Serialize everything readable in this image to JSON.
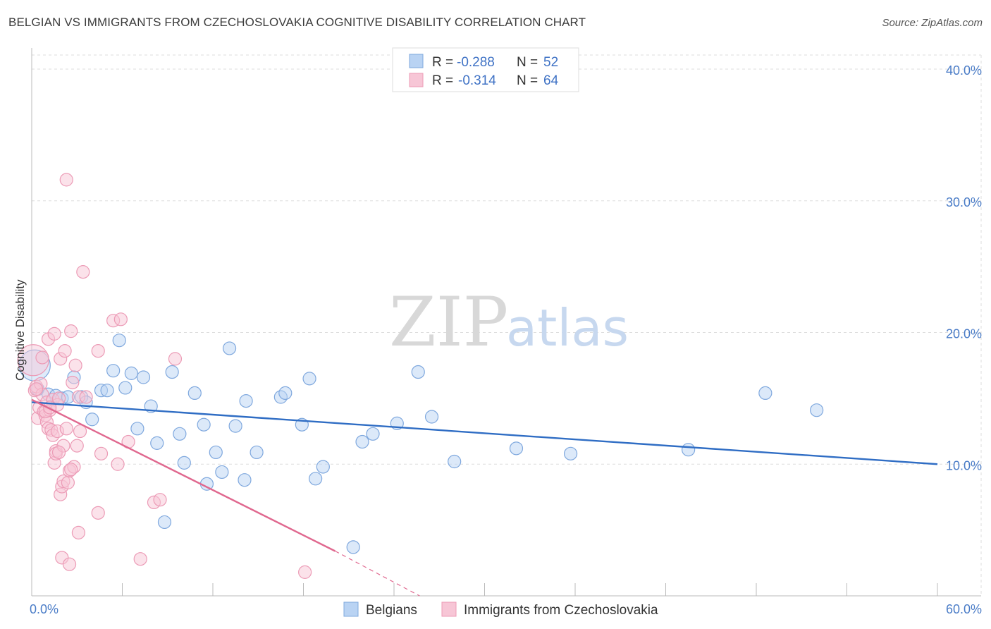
{
  "title": "BELGIAN VS IMMIGRANTS FROM CZECHOSLOVAKIA COGNITIVE DISABILITY CORRELATION CHART",
  "source": "Source: ZipAtlas.com",
  "watermark": {
    "zip": "ZIP",
    "atlas": "atlas"
  },
  "legend_top": {
    "r_label": "R =",
    "n_label": "N =",
    "items": [
      {
        "r": "-0.288",
        "n": "52"
      },
      {
        "r": "-0.314",
        "n": "64"
      }
    ]
  },
  "colors": {
    "belgians_fill": "#b9d3f3",
    "belgians_stroke": "#7fa8de",
    "belgians_line": "#2f6dc4",
    "czech_fill": "#f7c6d6",
    "czech_stroke": "#ec9bb6",
    "czech_line": "#e0688f",
    "tick_label": "#4a7cc7",
    "grid": "#dddddd"
  },
  "chart_data": {
    "type": "scatter",
    "title": "BELGIAN VS IMMIGRANTS FROM CZECHOSLOVAKIA COGNITIVE DISABILITY CORRELATION CHART",
    "xlabel": "",
    "ylabel": "Cognitive Disability",
    "xlim": [
      0,
      60
    ],
    "ylim": [
      0,
      41.5
    ],
    "x_tick_labels": [
      "0.0%",
      "60.0%"
    ],
    "y_ticks": [
      10,
      20,
      30,
      40
    ],
    "y_tick_labels": [
      "10.0%",
      "20.0%",
      "30.0%",
      "40.0%"
    ],
    "grid": true,
    "legend_position": "top-center",
    "series": [
      {
        "name": "Belgians",
        "r": -0.288,
        "n": 52,
        "trend": {
          "x": [
            0,
            60
          ],
          "y": [
            14.7,
            10.0
          ]
        },
        "points": [
          {
            "x": 0.2,
            "y": 17.5,
            "big": true
          },
          {
            "x": 0.4,
            "y": 15.7
          },
          {
            "x": 1.1,
            "y": 15.3
          },
          {
            "x": 1.6,
            "y": 15.2
          },
          {
            "x": 2.0,
            "y": 15.0
          },
          {
            "x": 2.4,
            "y": 15.1
          },
          {
            "x": 2.8,
            "y": 16.6
          },
          {
            "x": 3.3,
            "y": 15.1
          },
          {
            "x": 3.6,
            "y": 14.7
          },
          {
            "x": 4.0,
            "y": 13.4
          },
          {
            "x": 4.6,
            "y": 15.6
          },
          {
            "x": 5.0,
            "y": 15.6
          },
          {
            "x": 5.4,
            "y": 17.1
          },
          {
            "x": 5.8,
            "y": 19.4
          },
          {
            "x": 6.2,
            "y": 15.8
          },
          {
            "x": 6.6,
            "y": 16.9
          },
          {
            "x": 7.0,
            "y": 12.7
          },
          {
            "x": 7.4,
            "y": 16.6
          },
          {
            "x": 7.9,
            "y": 14.4
          },
          {
            "x": 8.3,
            "y": 11.6
          },
          {
            "x": 8.8,
            "y": 5.6
          },
          {
            "x": 9.3,
            "y": 17.0
          },
          {
            "x": 9.8,
            "y": 12.3
          },
          {
            "x": 10.1,
            "y": 10.1
          },
          {
            "x": 10.8,
            "y": 15.4
          },
          {
            "x": 11.4,
            "y": 13.0
          },
          {
            "x": 11.6,
            "y": 8.5
          },
          {
            "x": 12.2,
            "y": 10.9
          },
          {
            "x": 12.6,
            "y": 9.4
          },
          {
            "x": 13.1,
            "y": 18.8
          },
          {
            "x": 13.5,
            "y": 12.9
          },
          {
            "x": 14.1,
            "y": 8.8
          },
          {
            "x": 14.2,
            "y": 14.8
          },
          {
            "x": 14.9,
            "y": 10.9
          },
          {
            "x": 16.5,
            "y": 15.1
          },
          {
            "x": 16.8,
            "y": 15.4
          },
          {
            "x": 17.9,
            "y": 13.0
          },
          {
            "x": 18.4,
            "y": 16.5
          },
          {
            "x": 18.8,
            "y": 8.9
          },
          {
            "x": 19.3,
            "y": 9.8
          },
          {
            "x": 21.3,
            "y": 3.7
          },
          {
            "x": 21.9,
            "y": 11.7
          },
          {
            "x": 22.6,
            "y": 12.3
          },
          {
            "x": 24.2,
            "y": 13.1
          },
          {
            "x": 25.6,
            "y": 17.0
          },
          {
            "x": 26.5,
            "y": 13.6
          },
          {
            "x": 28.0,
            "y": 10.2
          },
          {
            "x": 32.1,
            "y": 11.2
          },
          {
            "x": 35.7,
            "y": 10.8
          },
          {
            "x": 43.5,
            "y": 11.1
          },
          {
            "x": 48.6,
            "y": 15.4
          },
          {
            "x": 52.0,
            "y": 14.1
          }
        ]
      },
      {
        "name": "Immigrants from Czechoslovakia",
        "r": -0.314,
        "n": 64,
        "trend": {
          "x": [
            0,
            20.1
          ],
          "y": [
            14.9,
            3.4
          ]
        },
        "trend_dashed": {
          "x": [
            20.1,
            25.7
          ],
          "y": [
            3.4,
            0
          ]
        },
        "points": [
          {
            "x": 0.1,
            "y": 17.9,
            "big": true
          },
          {
            "x": 0.2,
            "y": 15.6
          },
          {
            "x": 0.3,
            "y": 15.9
          },
          {
            "x": 0.4,
            "y": 13.5
          },
          {
            "x": 0.5,
            "y": 14.3
          },
          {
            "x": 0.6,
            "y": 16.1
          },
          {
            "x": 0.7,
            "y": 15.3
          },
          {
            "x": 0.7,
            "y": 18.1
          },
          {
            "x": 0.8,
            "y": 14.0
          },
          {
            "x": 0.9,
            "y": 13.7
          },
          {
            "x": 1.0,
            "y": 14.7
          },
          {
            "x": 1.0,
            "y": 13.2
          },
          {
            "x": 1.1,
            "y": 19.5
          },
          {
            "x": 1.1,
            "y": 12.7
          },
          {
            "x": 1.2,
            "y": 14.1
          },
          {
            "x": 1.3,
            "y": 12.6
          },
          {
            "x": 1.4,
            "y": 14.9
          },
          {
            "x": 1.4,
            "y": 12.2
          },
          {
            "x": 1.5,
            "y": 10.1
          },
          {
            "x": 1.5,
            "y": 19.9
          },
          {
            "x": 1.6,
            "y": 11.0
          },
          {
            "x": 1.6,
            "y": 10.8
          },
          {
            "x": 1.7,
            "y": 14.5
          },
          {
            "x": 1.7,
            "y": 12.5
          },
          {
            "x": 1.8,
            "y": 15.0
          },
          {
            "x": 1.9,
            "y": 18.0
          },
          {
            "x": 1.9,
            "y": 7.7
          },
          {
            "x": 2.0,
            "y": 8.3
          },
          {
            "x": 2.0,
            "y": 2.9
          },
          {
            "x": 2.1,
            "y": 11.4
          },
          {
            "x": 2.1,
            "y": 8.7
          },
          {
            "x": 2.2,
            "y": 18.6
          },
          {
            "x": 2.3,
            "y": 12.7
          },
          {
            "x": 2.3,
            "y": 31.6
          },
          {
            "x": 2.4,
            "y": 8.6
          },
          {
            "x": 2.5,
            "y": 2.4
          },
          {
            "x": 2.5,
            "y": 9.5
          },
          {
            "x": 2.6,
            "y": 20.1
          },
          {
            "x": 2.7,
            "y": 16.2
          },
          {
            "x": 2.8,
            "y": 9.8
          },
          {
            "x": 2.9,
            "y": 17.5
          },
          {
            "x": 3.0,
            "y": 11.4
          },
          {
            "x": 3.1,
            "y": 15.1
          },
          {
            "x": 3.1,
            "y": 4.8
          },
          {
            "x": 3.2,
            "y": 12.5
          },
          {
            "x": 3.4,
            "y": 24.6
          },
          {
            "x": 3.6,
            "y": 15.1
          },
          {
            "x": 4.4,
            "y": 18.6
          },
          {
            "x": 4.4,
            "y": 6.3
          },
          {
            "x": 4.6,
            "y": 10.8
          },
          {
            "x": 5.4,
            "y": 20.9
          },
          {
            "x": 5.7,
            "y": 10.0
          },
          {
            "x": 5.9,
            "y": 21.0
          },
          {
            "x": 6.4,
            "y": 11.7
          },
          {
            "x": 7.2,
            "y": 2.8
          },
          {
            "x": 8.1,
            "y": 7.1
          },
          {
            "x": 8.5,
            "y": 7.3
          },
          {
            "x": 9.5,
            "y": 18.0
          },
          {
            "x": 18.1,
            "y": 1.8
          },
          {
            "x": 0.3,
            "y": 15.7
          },
          {
            "x": 0.9,
            "y": 14.0
          },
          {
            "x": 1.2,
            "y": 14.3
          },
          {
            "x": 1.8,
            "y": 10.9
          },
          {
            "x": 2.6,
            "y": 9.6
          }
        ]
      }
    ]
  }
}
